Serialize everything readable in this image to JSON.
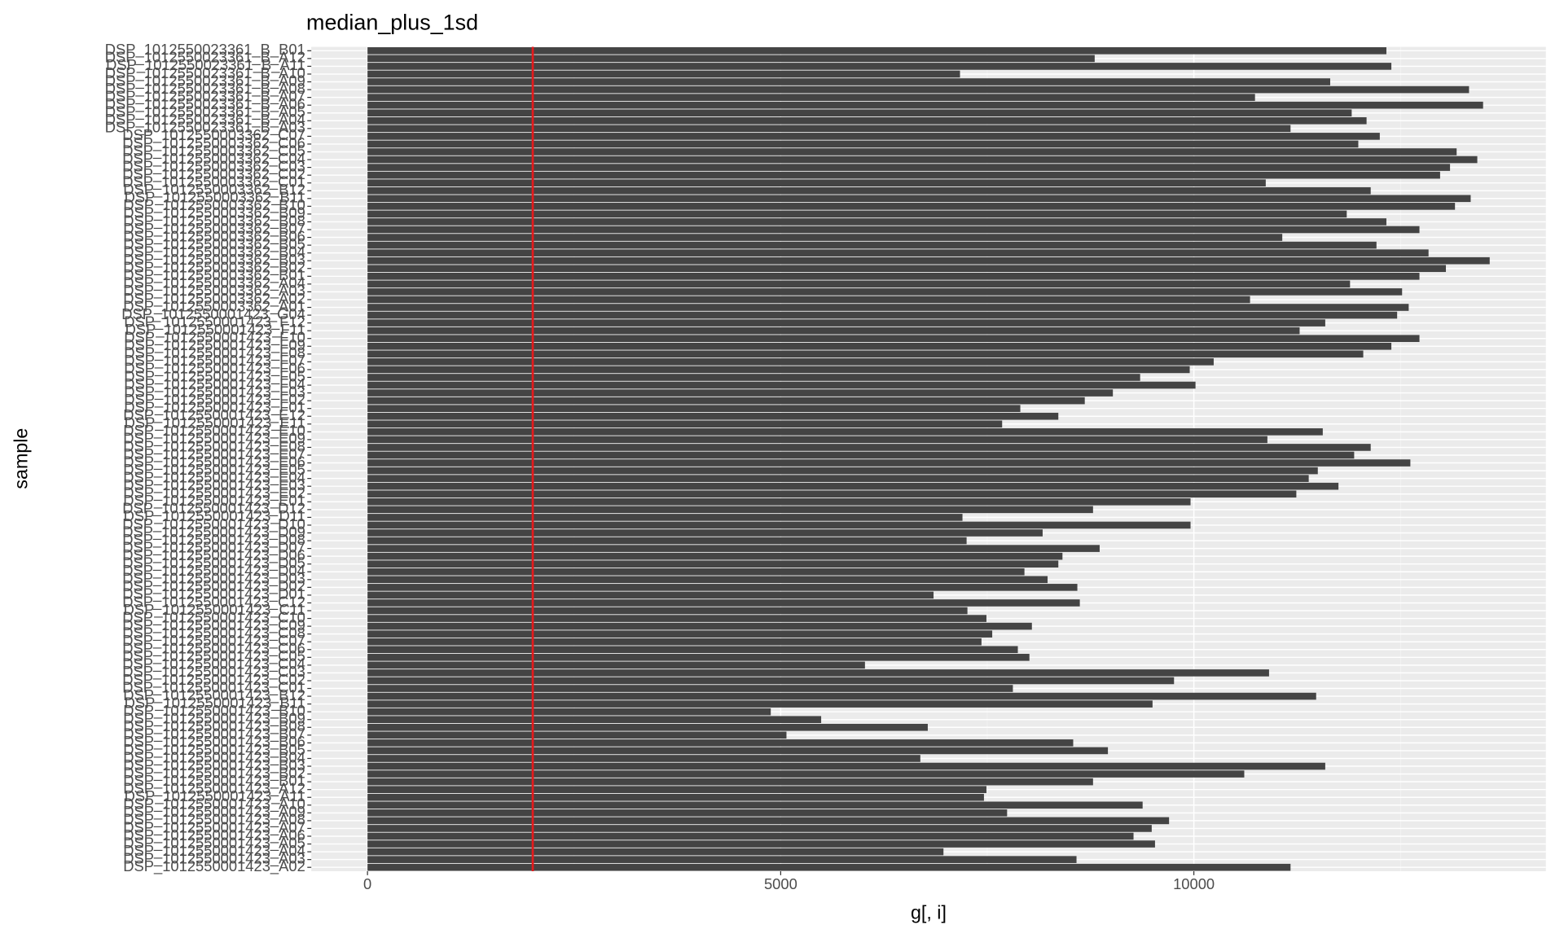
{
  "chart_data": {
    "type": "barh",
    "title": "median_plus_1sd",
    "x_label": "g[, i]",
    "y_label": "sample",
    "categories": [
      "DSP_1012550023361_B_B01",
      "DSP_1012550023361_B_A12",
      "DSP_1012550023361_B_A11",
      "DSP_1012550023361_B_A10",
      "DSP_1012550023361_B_A09",
      "DSP_1012550023361_B_A08",
      "DSP_1012550023361_B_A07",
      "DSP_1012550023361_B_A06",
      "DSP_1012550023361_B_A05",
      "DSP_1012550023361_B_A04",
      "DSP_1012550023361_B_A03",
      "DSP_1012550003362_C07",
      "DSP_1012550003362_C06",
      "DSP_1012550003362_C05",
      "DSP_1012550003362_C04",
      "DSP_1012550003362_C03",
      "DSP_1012550003362_C02",
      "DSP_1012550003362_C01",
      "DSP_1012550003362_B12",
      "DSP_1012550003362_B11",
      "DSP_1012550003362_B10",
      "DSP_1012550003362_B09",
      "DSP_1012550003362_B08",
      "DSP_1012550003362_B07",
      "DSP_1012550003362_B06",
      "DSP_1012550003362_B05",
      "DSP_1012550003362_B04",
      "DSP_1012550003362_B03",
      "DSP_1012550003362_B02",
      "DSP_1012550003362_B01",
      "DSP_1012550003362_A04",
      "DSP_1012550003362_A03",
      "DSP_1012550003362_A02",
      "DSP_1012550003362_A01",
      "DSP_1012550001423_G04",
      "DSP_1012550001423_F12",
      "DSP_1012550001423_F11",
      "DSP_1012550001423_F10",
      "DSP_1012550001423_F09",
      "DSP_1012550001423_F08",
      "DSP_1012550001423_F07",
      "DSP_1012550001423_F06",
      "DSP_1012550001423_F05",
      "DSP_1012550001423_F04",
      "DSP_1012550001423_F03",
      "DSP_1012550001423_F02",
      "DSP_1012550001423_F01",
      "DSP_1012550001423_E12",
      "DSP_1012550001423_E11",
      "DSP_1012550001423_E10",
      "DSP_1012550001423_E09",
      "DSP_1012550001423_E08",
      "DSP_1012550001423_E07",
      "DSP_1012550001423_E06",
      "DSP_1012550001423_E05",
      "DSP_1012550001423_E04",
      "DSP_1012550001423_E03",
      "DSP_1012550001423_E02",
      "DSP_1012550001423_E01",
      "DSP_1012550001423_D12",
      "DSP_1012550001423_D11",
      "DSP_1012550001423_D10",
      "DSP_1012550001423_D09",
      "DSP_1012550001423_D08",
      "DSP_1012550001423_D07",
      "DSP_1012550001423_D06",
      "DSP_1012550001423_D05",
      "DSP_1012550001423_D04",
      "DSP_1012550001423_D03",
      "DSP_1012550001423_D02",
      "DSP_1012550001423_D01",
      "DSP_1012550001423_C12",
      "DSP_1012550001423_C11",
      "DSP_1012550001423_C10",
      "DSP_1012550001423_C09",
      "DSP_1012550001423_C08",
      "DSP_1012550001423_C07",
      "DSP_1012550001423_C06",
      "DSP_1012550001423_C05",
      "DSP_1012550001423_C04",
      "DSP_1012550001423_C03",
      "DSP_1012550001423_C02",
      "DSP_1012550001423_C01",
      "DSP_1012550001423_B12",
      "DSP_1012550001423_B11",
      "DSP_1012550001423_B10",
      "DSP_1012550001423_B09",
      "DSP_1012550001423_B08",
      "DSP_1012550001423_B07",
      "DSP_1012550001423_B06",
      "DSP_1012550001423_B05",
      "DSP_1012550001423_B04",
      "DSP_1012550001423_B03",
      "DSP_1012550001423_B02",
      "DSP_1012550001423_B01",
      "DSP_1012550001423_A12",
      "DSP_1012550001423_A11",
      "DSP_1012550001423_A10",
      "DSP_1012550001423_A09",
      "DSP_1012550001423_A08",
      "DSP_1012550001423_A07",
      "DSP_1012550001423_A06",
      "DSP_1012550001423_A05",
      "DSP_1012550001423_A04",
      "DSP_1012550001423_A03",
      "DSP_1012550001423_A02"
    ],
    "values": [
      12330,
      8800,
      12390,
      7170,
      11650,
      13330,
      10740,
      13500,
      11910,
      12090,
      11170,
      12250,
      11990,
      13180,
      13430,
      13100,
      12980,
      10870,
      12140,
      13350,
      13160,
      11850,
      12330,
      12730,
      11070,
      12210,
      12840,
      13580,
      13050,
      12730,
      11890,
      12520,
      10680,
      12600,
      12460,
      11590,
      11280,
      12730,
      12390,
      12050,
      10240,
      9950,
      9350,
      10020,
      9020,
      8680,
      7900,
      8360,
      7680,
      11560,
      10890,
      12140,
      11940,
      12620,
      11500,
      11390,
      11750,
      11240,
      9960,
      8780,
      7200,
      9960,
      8170,
      7250,
      8860,
      8410,
      8360,
      7950,
      8230,
      8590,
      6850,
      8620,
      7260,
      7490,
      8040,
      7560,
      7430,
      7870,
      8010,
      6020,
      10910,
      9760,
      7810,
      11480,
      9500,
      4880,
      5490,
      6780,
      5070,
      8540,
      8960,
      6690,
      11590,
      10610,
      8780,
      7490,
      7460,
      9380,
      7740,
      9700,
      9490,
      9270,
      9530,
      6970,
      8580,
      11170
    ],
    "color": "#444444",
    "vline": 2000,
    "vline_color": "#e41a1c",
    "xlim": [
      -680,
      14260
    ],
    "xticks": [
      0,
      5000,
      10000
    ],
    "x_minor_grid": [
      2500,
      7500,
      12500
    ],
    "grid": true
  }
}
